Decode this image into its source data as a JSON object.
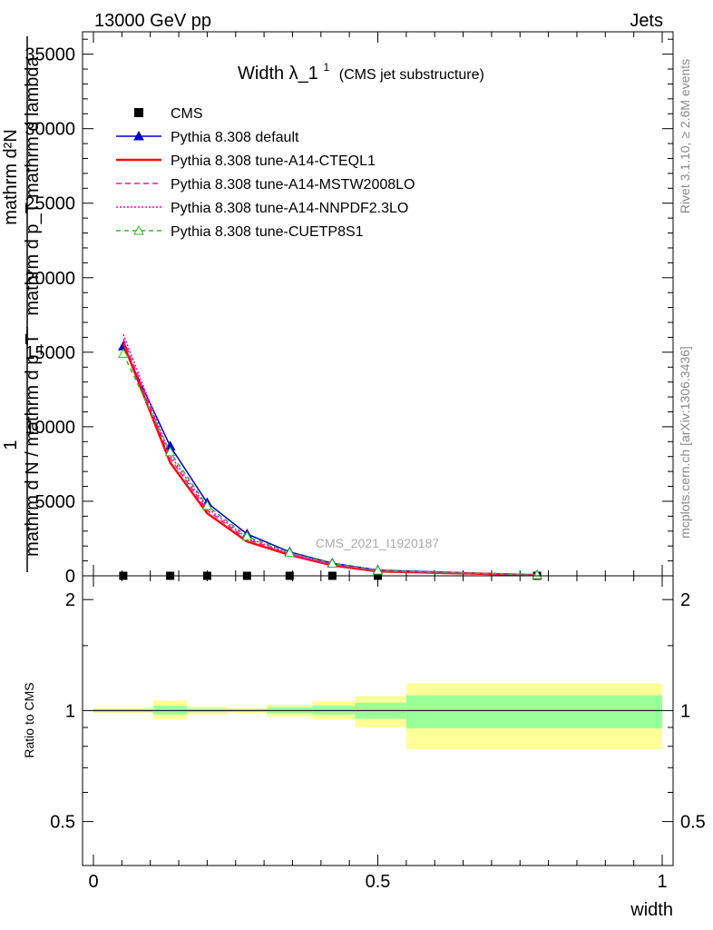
{
  "header": {
    "left": "13000 GeV pp",
    "right": "Jets"
  },
  "side": {
    "rivet": "Rivet 3.1.10, ≥ 2.6M events",
    "mcplots": "mcplots.cern.ch [arXiv:1306.3436]"
  },
  "watermark": "CMS_2021_I1920187",
  "chart_data": [
    {
      "type": "line",
      "title_main": "Width λ_1",
      "title_sup": "1",
      "title_sub": "(CMS jet substructure)",
      "ylabel_numer": "1",
      "ylabel_denom": "mathrm d N / mathrm d p_T",
      "ylabel_frac_numer": "mathrm d²N",
      "ylabel_frac_denom": "mathrm d p_T mathrm d lambda",
      "ylim": [
        0,
        36500
      ],
      "yticks": [
        0,
        5000,
        10000,
        15000,
        20000,
        25000,
        30000,
        35000
      ],
      "ytick_labels": [
        "0",
        "5000",
        "10000",
        "15000",
        "20000",
        "25000",
        "30000",
        "35000"
      ],
      "xlim": [
        0,
        1
      ],
      "legend_position": "top-left",
      "series": [
        {
          "name": "CMS",
          "style": "data",
          "color": "#000000",
          "x": [
            0.0525,
            0.135,
            0.2,
            0.27,
            0.345,
            0.42,
            0.5,
            0.78
          ],
          "y": [
            0,
            0,
            0,
            0,
            0,
            0,
            0,
            0
          ]
        },
        {
          "name": "Pythia 8.308 default",
          "style": "solid-triangle",
          "color": "#0000cc",
          "x": [
            0.0525,
            0.135,
            0.2,
            0.27,
            0.345,
            0.42,
            0.5,
            0.78
          ],
          "y": [
            15400,
            8700,
            4900,
            2800,
            1600,
            850,
            380,
            60
          ]
        },
        {
          "name": "Pythia 8.308 tune-A14-CTEQL1",
          "style": "solid",
          "color": "#ee1111",
          "x": [
            0.0525,
            0.135,
            0.2,
            0.27,
            0.345,
            0.42,
            0.5,
            0.78
          ],
          "y": [
            15600,
            7600,
            4200,
            2300,
            1400,
            700,
            300,
            40
          ]
        },
        {
          "name": "Pythia 8.308 tune-A14-MSTW2008LO",
          "style": "dashed",
          "color": "#ff1493",
          "x": [
            0.0525,
            0.135,
            0.2,
            0.27,
            0.345,
            0.42,
            0.5,
            0.78
          ],
          "y": [
            15900,
            7900,
            4400,
            2450,
            1450,
            750,
            320,
            45
          ]
        },
        {
          "name": "Pythia 8.308 tune-A14-NNPDF2.3LO",
          "style": "dotted",
          "color": "#ff00cc",
          "x": [
            0.0525,
            0.135,
            0.2,
            0.27,
            0.345,
            0.42,
            0.5,
            0.78
          ],
          "y": [
            16200,
            8100,
            4550,
            2550,
            1500,
            780,
            330,
            50
          ]
        },
        {
          "name": "Pythia 8.308 tune-CUETP8S1",
          "style": "dashed-open-triangle",
          "color": "#33bb22",
          "x": [
            0.0525,
            0.135,
            0.2,
            0.27,
            0.345,
            0.42,
            0.5,
            0.78
          ],
          "y": [
            14900,
            8300,
            4700,
            2650,
            1550,
            820,
            360,
            55
          ]
        }
      ]
    },
    {
      "type": "area",
      "ylabel": "Ratio to CMS",
      "ylim": [
        0.38,
        2.32
      ],
      "yticks": [
        0.5,
        1,
        2
      ],
      "ytick_labels": [
        "0.5",
        "1",
        "2"
      ],
      "xlim": [
        0,
        1
      ],
      "xticks": [
        0,
        0.5,
        1
      ],
      "xtick_labels": [
        "0",
        "0.5",
        "1"
      ],
      "xlabel": "width",
      "reference_line": 1,
      "bands": {
        "bin_edges": [
          0,
          0.105,
          0.165,
          0.235,
          0.305,
          0.385,
          0.46,
          0.55,
          1.0
        ],
        "inner_color": "#99ff99",
        "outer_color": "#ffff99",
        "inner_lo": [
          0.99,
          0.975,
          0.99,
          0.992,
          0.982,
          0.975,
          0.95,
          0.895
        ],
        "inner_hi": [
          1.01,
          1.03,
          1.012,
          1.01,
          1.02,
          1.03,
          1.05,
          1.1
        ],
        "outer_lo": [
          0.985,
          0.945,
          0.975,
          0.985,
          0.962,
          0.945,
          0.9,
          0.785
        ],
        "outer_hi": [
          1.015,
          1.065,
          1.025,
          1.015,
          1.038,
          1.058,
          1.095,
          1.185
        ]
      }
    }
  ]
}
